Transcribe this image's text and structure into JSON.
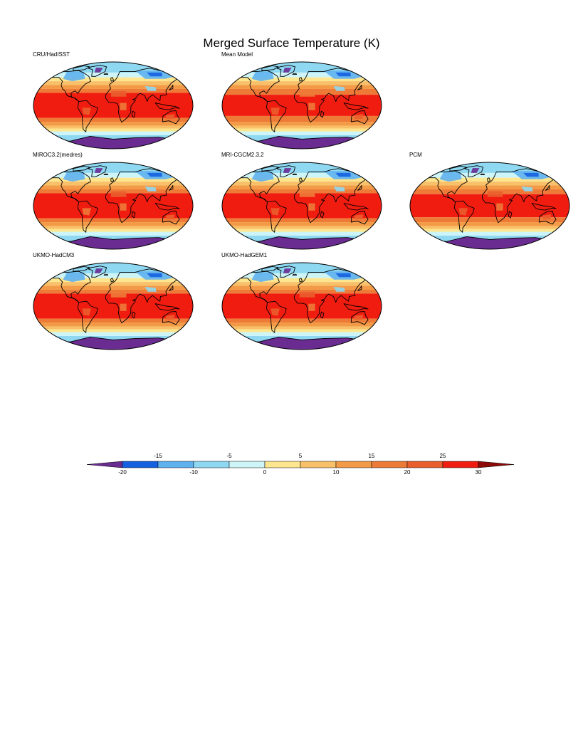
{
  "title": "Merged Surface Temperature (K)",
  "panels": [
    {
      "label": "CRU/HadISST",
      "variant": 0
    },
    {
      "label": "Mean Model",
      "variant": 1
    },
    {
      "label": "MIROC3.2(medres)",
      "variant": 2
    },
    {
      "label": "MRI-CGCM2.3.2",
      "variant": 3
    },
    {
      "label": "PCM",
      "variant": 4
    },
    {
      "label": "UKMO-HadCM3",
      "variant": 5
    },
    {
      "label": "UKMO-HadGEM1",
      "variant": 6
    }
  ],
  "colorbar": {
    "levels": [
      -20,
      -15,
      -10,
      -5,
      0,
      5,
      10,
      15,
      20,
      25,
      30
    ],
    "labels_top": [
      "-15",
      "-5",
      "5",
      "15",
      "25"
    ],
    "labels_bottom": [
      "-20",
      "-10",
      "0",
      "10",
      "20",
      "30"
    ],
    "colors": [
      "#6a2c91",
      "#1560e0",
      "#5fb1f0",
      "#8ed8f2",
      "#cdf4f6",
      "#fde68e",
      "#f9c06a",
      "#f39a47",
      "#ee7a38",
      "#ea5e2e",
      "#f11c10",
      "#8c0a07"
    ]
  }
}
